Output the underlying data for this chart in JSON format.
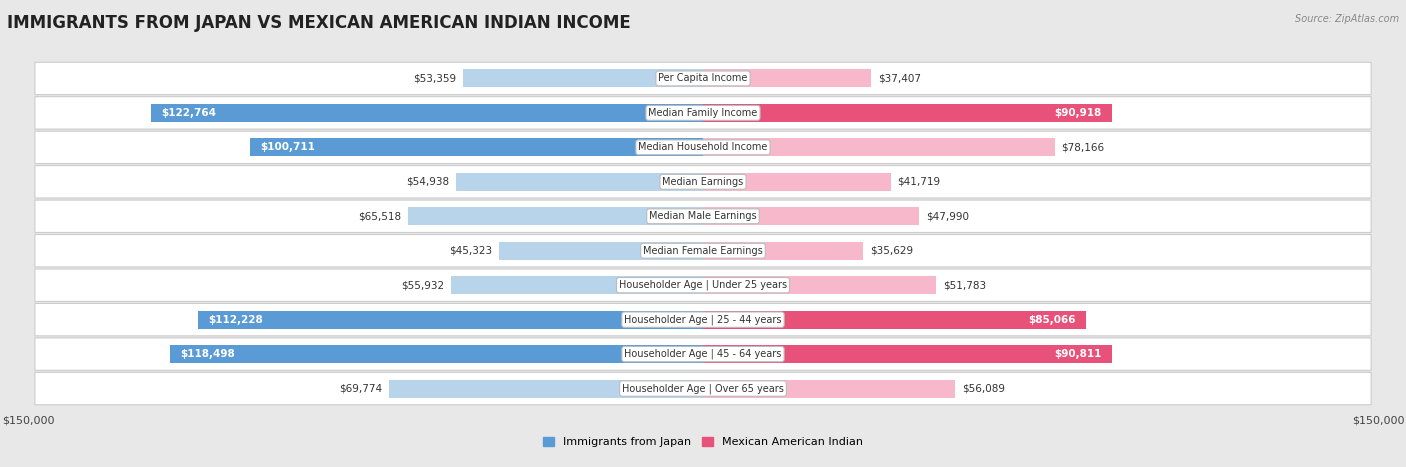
{
  "title": "IMMIGRANTS FROM JAPAN VS MEXICAN AMERICAN INDIAN INCOME",
  "source": "Source: ZipAtlas.com",
  "categories": [
    "Per Capita Income",
    "Median Family Income",
    "Median Household Income",
    "Median Earnings",
    "Median Male Earnings",
    "Median Female Earnings",
    "Householder Age | Under 25 years",
    "Householder Age | 25 - 44 years",
    "Householder Age | 45 - 64 years",
    "Householder Age | Over 65 years"
  ],
  "japan_values": [
    53359,
    122764,
    100711,
    54938,
    65518,
    45323,
    55932,
    112228,
    118498,
    69774
  ],
  "mexican_values": [
    37407,
    90918,
    78166,
    41719,
    47990,
    35629,
    51783,
    85066,
    90811,
    56089
  ],
  "japan_labels": [
    "$53,359",
    "$122,764",
    "$100,711",
    "$54,938",
    "$65,518",
    "$45,323",
    "$55,932",
    "$112,228",
    "$118,498",
    "$69,774"
  ],
  "mexican_labels": [
    "$37,407",
    "$90,918",
    "$78,166",
    "$41,719",
    "$47,990",
    "$35,629",
    "$51,783",
    "$85,066",
    "$90,811",
    "$56,089"
  ],
  "max_value": 150000,
  "japan_color_light": "#b8d4ea",
  "japan_color_dark": "#5b9bd5",
  "mexican_color_light": "#f7b8cc",
  "mexican_color_dark": "#e8517a",
  "background_color": "#e8e8e8",
  "row_bg_color": "#ffffff",
  "inside_label_threshold": 85000,
  "title_fontsize": 12,
  "bar_height": 0.52,
  "label_fontsize": 7.5,
  "cat_fontsize": 7.0
}
